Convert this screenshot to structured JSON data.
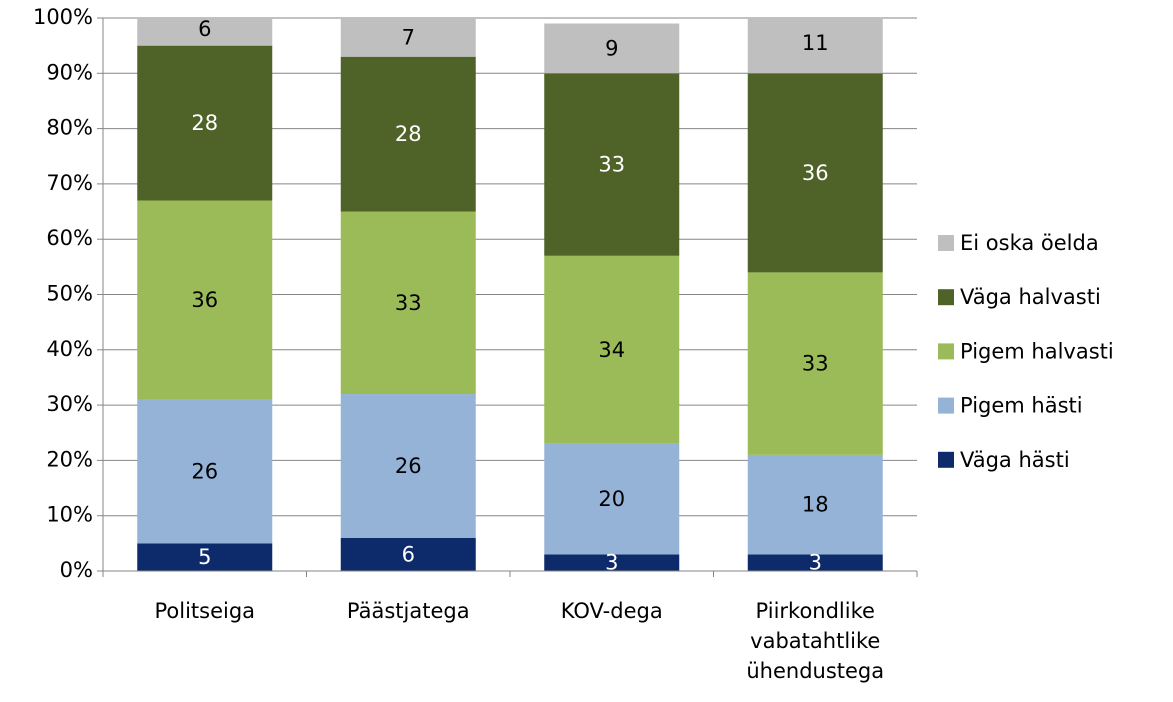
{
  "chart_data": {
    "type": "bar",
    "stacked": true,
    "categories": [
      "Politseiga",
      "Päästjatega",
      "KOV-dega",
      "Piirkondlike vabatahtlike ühendustega"
    ],
    "series": [
      {
        "name": "Väga hästi",
        "color": "#0d2a6b",
        "values": [
          5,
          6,
          3,
          3
        ]
      },
      {
        "name": "Pigem hästi",
        "color": "#95b3d7",
        "values": [
          26,
          26,
          20,
          18
        ]
      },
      {
        "name": "Pigem halvasti",
        "color": "#9bbb59",
        "values": [
          36,
          33,
          34,
          33
        ]
      },
      {
        "name": "Väga halvasti",
        "color": "#4f6228",
        "values": [
          28,
          28,
          33,
          36
        ]
      },
      {
        "name": "Ei oska öelda",
        "color": "#bfbfbf",
        "values": [
          6,
          7,
          9,
          11
        ]
      }
    ],
    "ylim": [
      0,
      100
    ],
    "yticks": [
      {
        "value": 0,
        "label": "0%"
      },
      {
        "value": 10,
        "label": "10%"
      },
      {
        "value": 20,
        "label": "20%"
      },
      {
        "value": 30,
        "label": "30%"
      },
      {
        "value": 40,
        "label": "40%"
      },
      {
        "value": 50,
        "label": "50%"
      },
      {
        "value": 60,
        "label": "60%"
      },
      {
        "value": 70,
        "label": "70%"
      },
      {
        "value": 80,
        "label": "80%"
      },
      {
        "value": 90,
        "label": "90%"
      },
      {
        "value": 100,
        "label": "100%"
      }
    ],
    "grid": true,
    "legend": "right"
  }
}
